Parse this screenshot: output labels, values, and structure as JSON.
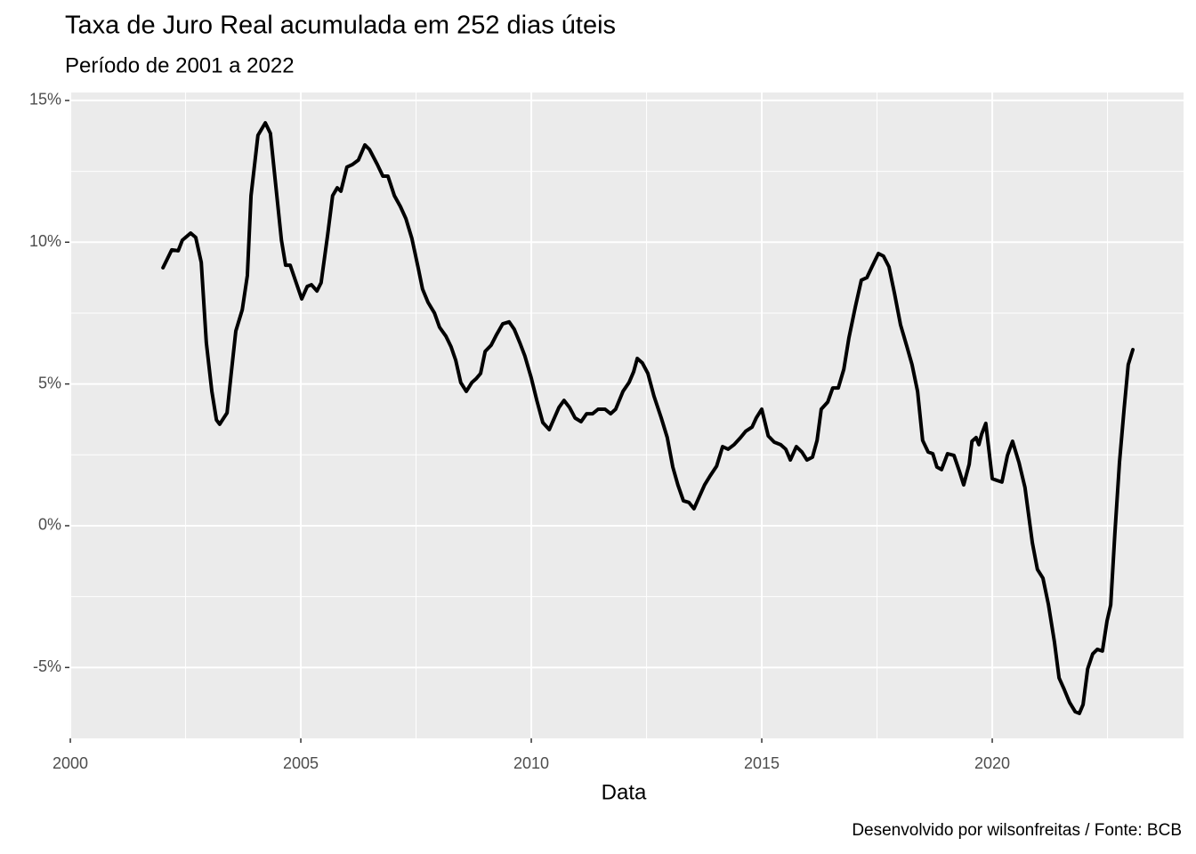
{
  "chart_data": {
    "type": "line",
    "title": "Taxa de Juro Real acumulada em 252 dias úteis",
    "subtitle": "Período de 2001 a 2022",
    "x_label": "Data",
    "caption": "Desenvolvido por wilsonfreitas / Fonte: BCB",
    "color": "#000000",
    "grid": true,
    "xlim": [
      1999.98,
      2024.15
    ],
    "ylim": [
      -7.5,
      15.28
    ],
    "xticks": [
      2000,
      2005,
      2010,
      2015,
      2020
    ],
    "yticks": [
      {
        "value": -5,
        "label": "-5%"
      },
      {
        "value": 0,
        "label": "0%"
      },
      {
        "value": 5,
        "label": "5%"
      },
      {
        "value": 10,
        "label": "10%"
      },
      {
        "value": 15,
        "label": "15%"
      }
    ],
    "minor_xticks": [
      2002.5,
      2007.5,
      2012.5,
      2017.5,
      2022.5
    ],
    "minor_yticks": [
      -2.5,
      2.5,
      7.5,
      12.5
    ],
    "x": [
      2002.01,
      2002.2,
      2002.34,
      2002.43,
      2002.61,
      2002.72,
      2002.84,
      2002.95,
      2003.07,
      2003.17,
      2003.24,
      2003.4,
      2003.49,
      2003.59,
      2003.73,
      2003.84,
      2003.92,
      2004.07,
      2004.23,
      2004.34,
      2004.46,
      2004.58,
      2004.67,
      2004.77,
      2004.9,
      2005.02,
      2005.14,
      2005.23,
      2005.35,
      2005.44,
      2005.58,
      2005.69,
      2005.79,
      2005.87,
      2006.0,
      2006.12,
      2006.25,
      2006.39,
      2006.49,
      2006.66,
      2006.78,
      2006.89,
      2007.03,
      2007.16,
      2007.28,
      2007.41,
      2007.55,
      2007.64,
      2007.76,
      2007.9,
      2008.01,
      2008.15,
      2008.26,
      2008.36,
      2008.47,
      2008.59,
      2008.71,
      2008.8,
      2008.9,
      2009.0,
      2009.13,
      2009.25,
      2009.38,
      2009.52,
      2009.63,
      2009.75,
      2009.86,
      2010.0,
      2010.12,
      2010.25,
      2010.39,
      2010.5,
      2010.6,
      2010.71,
      2010.83,
      2010.95,
      2011.08,
      2011.2,
      2011.33,
      2011.45,
      2011.6,
      2011.72,
      2011.83,
      2011.99,
      2012.12,
      2012.22,
      2012.3,
      2012.41,
      2012.53,
      2012.66,
      2012.82,
      2012.95,
      2013.07,
      2013.18,
      2013.3,
      2013.42,
      2013.53,
      2013.65,
      2013.76,
      2013.88,
      2014.02,
      2014.15,
      2014.27,
      2014.4,
      2014.54,
      2014.65,
      2014.79,
      2014.88,
      2015.0,
      2015.14,
      2015.27,
      2015.41,
      2015.52,
      2015.62,
      2015.75,
      2015.87,
      2015.98,
      2016.1,
      2016.2,
      2016.29,
      2016.43,
      2016.54,
      2016.66,
      2016.78,
      2016.89,
      2017.03,
      2017.16,
      2017.28,
      2017.39,
      2017.53,
      2017.64,
      2017.76,
      2017.88,
      2018.01,
      2018.15,
      2018.26,
      2018.38,
      2018.49,
      2018.61,
      2018.71,
      2018.8,
      2018.9,
      2019.03,
      2019.17,
      2019.29,
      2019.38,
      2019.5,
      2019.56,
      2019.65,
      2019.71,
      2019.77,
      2019.86,
      2020.0,
      2020.1,
      2020.21,
      2020.33,
      2020.44,
      2020.58,
      2020.71,
      2020.87,
      2020.98,
      2021.1,
      2021.22,
      2021.35,
      2021.45,
      2021.56,
      2021.68,
      2021.8,
      2021.89,
      2021.97,
      2022.07,
      2022.18,
      2022.28,
      2022.39,
      2022.49,
      2022.57,
      2022.66,
      2022.76,
      2022.86,
      2022.95,
      2023.05
    ],
    "values": [
      9.1,
      9.73,
      9.7,
      10.07,
      10.32,
      10.17,
      9.29,
      6.46,
      4.74,
      3.73,
      3.58,
      3.98,
      5.37,
      6.87,
      7.62,
      8.82,
      11.64,
      13.77,
      14.21,
      13.84,
      11.95,
      10.07,
      9.19,
      9.19,
      8.57,
      8.0,
      8.44,
      8.5,
      8.28,
      8.57,
      10.23,
      11.64,
      11.92,
      11.8,
      12.65,
      12.74,
      12.9,
      13.43,
      13.27,
      12.74,
      12.33,
      12.33,
      11.64,
      11.26,
      10.83,
      10.13,
      9.07,
      8.35,
      7.88,
      7.5,
      7.0,
      6.68,
      6.31,
      5.84,
      5.05,
      4.74,
      5.05,
      5.18,
      5.37,
      6.15,
      6.37,
      6.75,
      7.12,
      7.19,
      6.93,
      6.46,
      5.99,
      5.21,
      4.42,
      3.64,
      3.39,
      3.8,
      4.17,
      4.42,
      4.17,
      3.8,
      3.67,
      3.95,
      3.95,
      4.11,
      4.11,
      3.95,
      4.11,
      4.74,
      5.05,
      5.43,
      5.9,
      5.74,
      5.37,
      4.58,
      3.8,
      3.11,
      2.07,
      1.44,
      0.88,
      0.82,
      0.6,
      1.04,
      1.44,
      1.76,
      2.1,
      2.79,
      2.7,
      2.86,
      3.11,
      3.33,
      3.48,
      3.8,
      4.11,
      3.17,
      2.95,
      2.86,
      2.7,
      2.32,
      2.79,
      2.6,
      2.32,
      2.42,
      3.01,
      4.11,
      4.36,
      4.86,
      4.86,
      5.52,
      6.62,
      7.72,
      8.66,
      8.75,
      9.13,
      9.6,
      9.51,
      9.13,
      8.19,
      7.09,
      6.31,
      5.68,
      4.74,
      3.01,
      2.6,
      2.54,
      2.07,
      1.98,
      2.54,
      2.48,
      1.91,
      1.44,
      2.17,
      2.98,
      3.11,
      2.86,
      3.23,
      3.61,
      1.66,
      1.6,
      1.54,
      2.48,
      2.98,
      2.23,
      1.35,
      -0.6,
      -1.54,
      -1.85,
      -2.79,
      -4.11,
      -5.37,
      -5.77,
      -6.24,
      -6.56,
      -6.62,
      -6.31,
      -5.05,
      -4.52,
      -4.36,
      -4.42,
      -3.36,
      -2.79,
      -0.28,
      2.23,
      4.11,
      5.68,
      6.21
    ]
  }
}
